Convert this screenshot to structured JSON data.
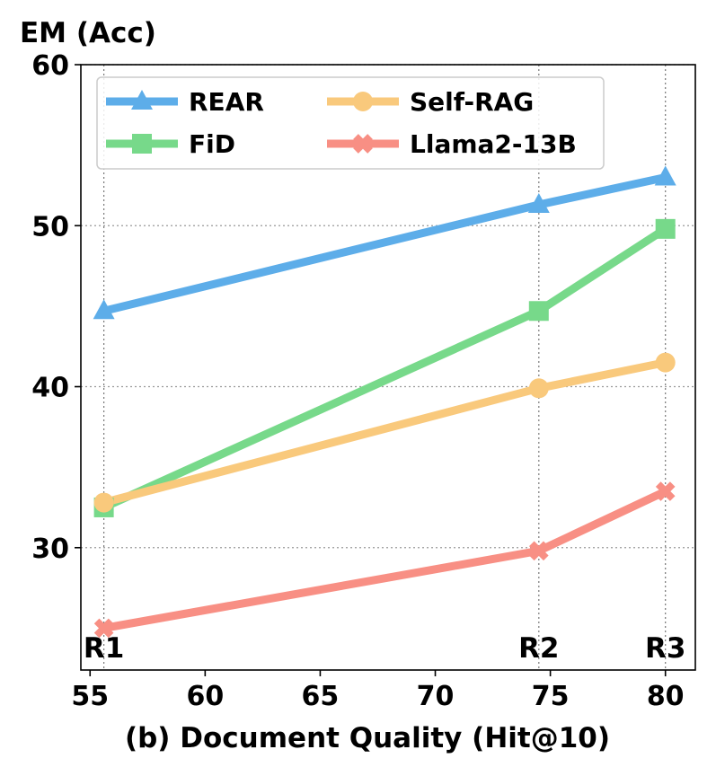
{
  "chart_data": {
    "type": "line",
    "title": "",
    "ylabel": "EM (Acc)",
    "xlabel": "(b) Document Quality (Hit@10)",
    "xlim": [
      54.6,
      81.3
    ],
    "ylim": [
      22.4,
      60
    ],
    "xticks": [
      55,
      60,
      65,
      70,
      75,
      80
    ],
    "yticks": [
      30,
      40,
      50,
      60
    ],
    "grid": "dotted, at x = R1, R2, R3 and y = 30, 40, 50, 60",
    "legend_position": "top-left",
    "points": [
      {
        "label": "R1",
        "x": 55.6
      },
      {
        "label": "R2",
        "x": 74.5
      },
      {
        "label": "R3",
        "x": 80
      }
    ],
    "series": [
      {
        "name": "REAR",
        "marker": "triangle",
        "color": "#5DADE9",
        "values": [
          44.7,
          51.3,
          53.0
        ]
      },
      {
        "name": "FiD",
        "marker": "square",
        "color": "#77D98A",
        "values": [
          32.5,
          44.7,
          49.8
        ]
      },
      {
        "name": "Self-RAG",
        "marker": "circle",
        "color": "#F9C97C",
        "values": [
          32.8,
          39.9,
          41.5
        ]
      },
      {
        "name": "Llama2-13B",
        "marker": "x",
        "color": "#F88F84",
        "values": [
          25.0,
          29.8,
          33.5
        ]
      }
    ]
  }
}
